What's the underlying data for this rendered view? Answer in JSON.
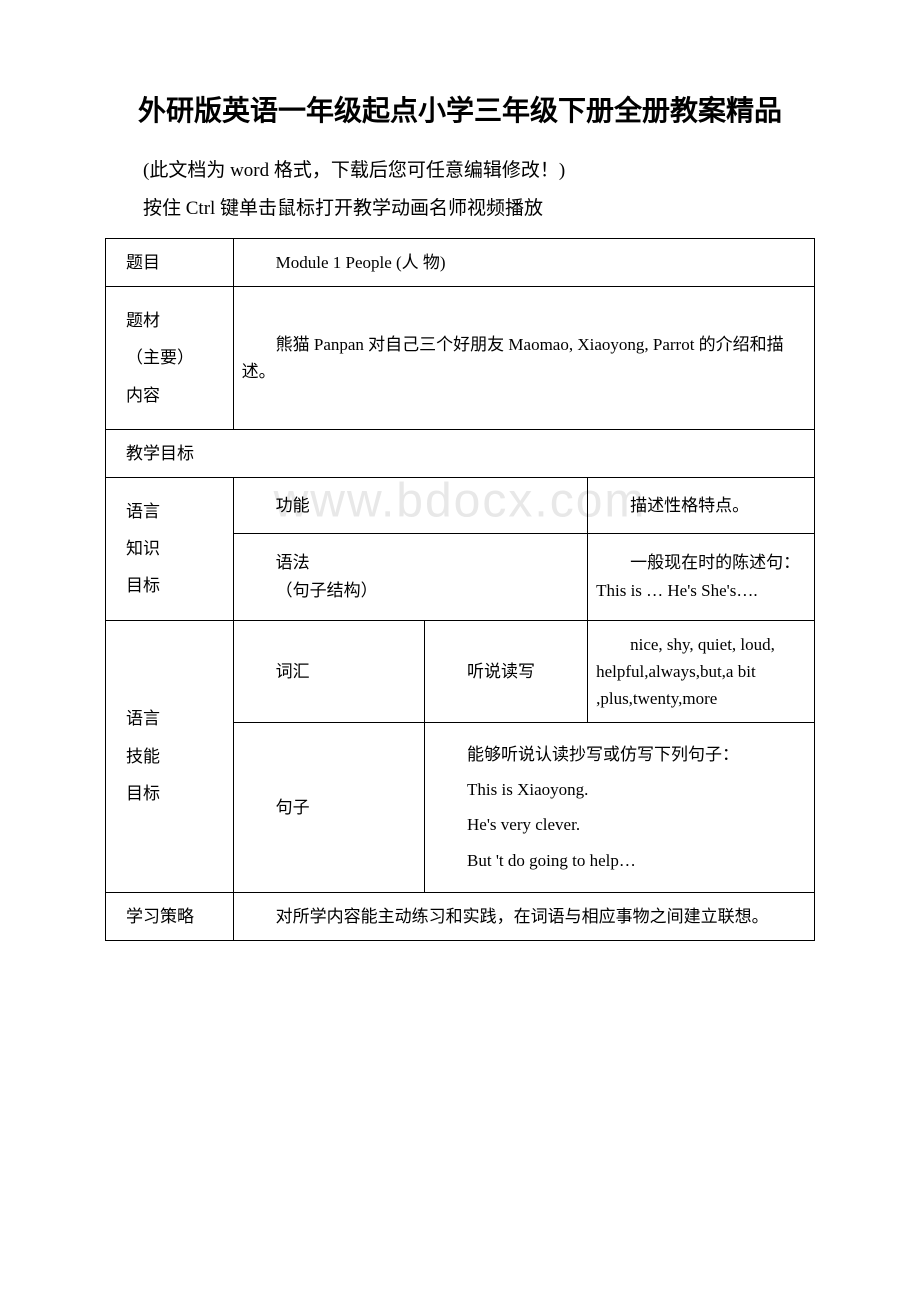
{
  "doc": {
    "title": "外研版英语一年级起点小学三年级下册全册教案精品",
    "note": "(此文档为 word 格式，下载后您可任意编辑修改！)",
    "instruction": "按住 Ctrl 键单击鼠标打开教学动画名师视频播放",
    "watermark": "www.bdocx.com"
  },
  "table": {
    "row_topic": {
      "label": "题目",
      "value": "Module  1 People  (人 物)"
    },
    "row_theme": {
      "label1": "题材",
      "label2": "（主要）",
      "label3": "内容",
      "value": "熊猫 Panpan    对自己三个好朋友 Maomao, Xiaoyong, Parrot 的介绍和描述。"
    },
    "row_objectives": {
      "label": "教学目标"
    },
    "row_knowledge": {
      "label1": "语言",
      "label2": "知识",
      "label3": "目标",
      "function_label": "功能",
      "function_value": "描述性格特点。",
      "grammar_label1": "语法",
      "grammar_label2": "（句子结构）",
      "grammar_value": "一般现在时的陈述句：This is … He's  She's…."
    },
    "row_skills": {
      "label1": "语言",
      "label2": "技能",
      "label3": "目标",
      "vocab_label": "词汇",
      "vocab_mode": "听说读写",
      "vocab_value": "nice, shy, quiet, loud, helpful,always,but,a bit ,plus,twenty,more",
      "sentence_label": "句子",
      "sentence_v1": "能够听说认读抄写或仿写下列句子：",
      "sentence_v2": "This is Xiaoyong.",
      "sentence_v3": " He's very clever.",
      "sentence_v4": "But 't do going to help…"
    },
    "row_strategy": {
      "label": "学习策略",
      "value": "对所学内容能主动练习和实践，在词语与相应事物之间建立联想。"
    }
  }
}
